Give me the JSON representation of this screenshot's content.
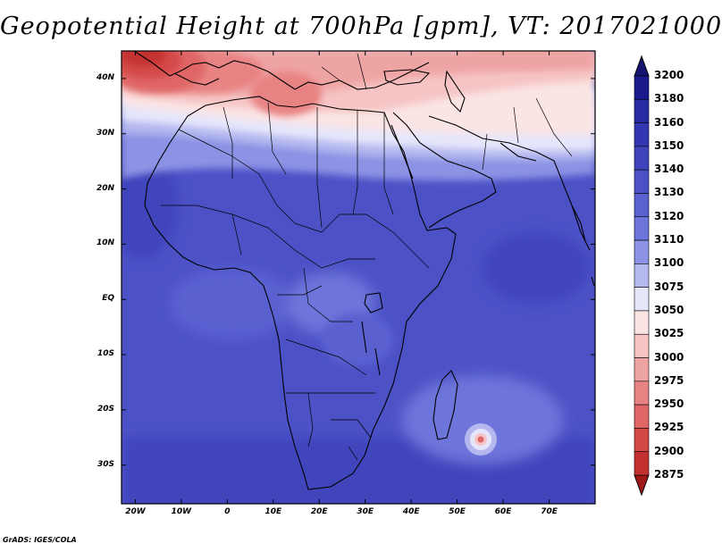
{
  "title": "Geopotential Height at 700hPa [gpm], VT: 2017021000",
  "credit": "GrADS: IGES/COLA",
  "lat_labels": [
    {
      "label": "40N",
      "lat": 40
    },
    {
      "label": "30N",
      "lat": 30
    },
    {
      "label": "20N",
      "lat": 20
    },
    {
      "label": "10N",
      "lat": 10
    },
    {
      "label": "EQ",
      "lat": 0
    },
    {
      "label": "10S",
      "lat": -10
    },
    {
      "label": "20S",
      "lat": -20
    },
    {
      "label": "30S",
      "lat": -30
    }
  ],
  "lon_labels": [
    {
      "label": "20W",
      "lon": -20
    },
    {
      "label": "10W",
      "lon": -10
    },
    {
      "label": "0",
      "lon": 0
    },
    {
      "label": "10E",
      "lon": 10
    },
    {
      "label": "20E",
      "lon": 20
    },
    {
      "label": "30E",
      "lon": 30
    },
    {
      "label": "40E",
      "lon": 40
    },
    {
      "label": "50E",
      "lon": 50
    },
    {
      "label": "60E",
      "lon": 60
    },
    {
      "label": "70E",
      "lon": 70
    }
  ],
  "map_extent": {
    "lon_min": -23,
    "lon_max": 80,
    "lat_min": -37,
    "lat_max": 45
  },
  "colorbar": {
    "labels": [
      "3200",
      "3180",
      "3160",
      "3150",
      "3140",
      "3130",
      "3120",
      "3110",
      "3100",
      "3075",
      "3050",
      "3025",
      "3000",
      "2975",
      "2950",
      "2925",
      "2900",
      "2875"
    ],
    "colors": [
      "#1a1a8c",
      "#262ba3",
      "#3236b0",
      "#3f44bc",
      "#4c52c6",
      "#5a61d0",
      "#6d74da",
      "#8c92e4",
      "#b4b8ef",
      "#e6e6fb",
      "#fbe4e4",
      "#f6c4c4",
      "#efa4a4",
      "#e88383",
      "#e06666",
      "#d44848",
      "#c43030",
      "#b22020"
    ],
    "cap_top": "#141470",
    "cap_bottom": "#a01818"
  }
}
